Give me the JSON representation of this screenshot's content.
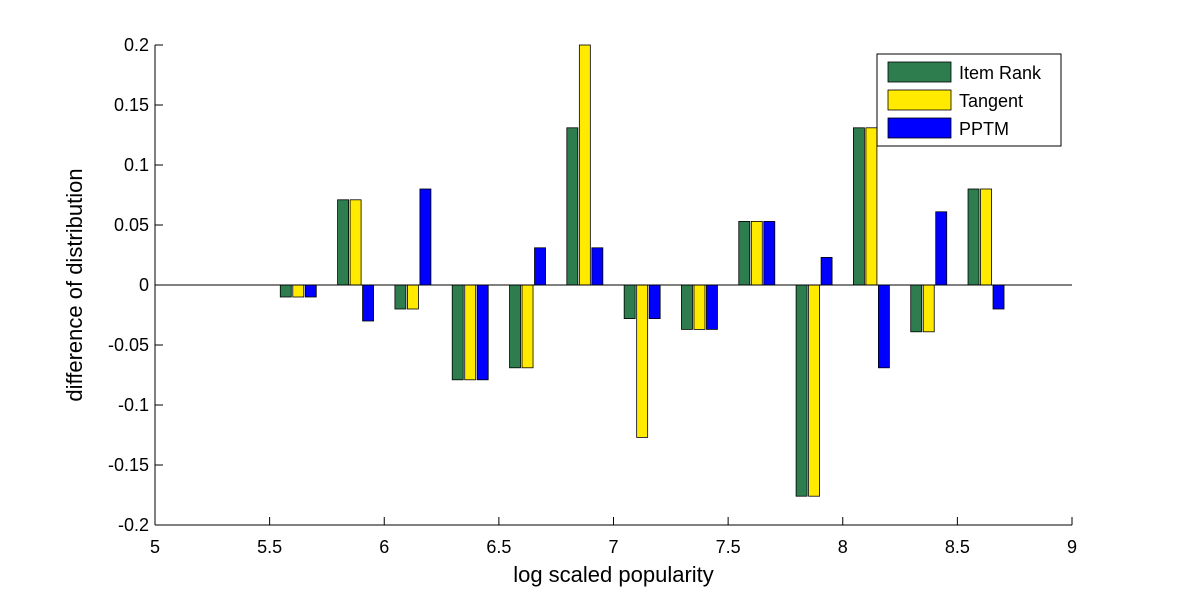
{
  "chart_data": {
    "type": "bar",
    "title": "",
    "xlabel": "log scaled popularity",
    "ylabel": "difference of distribution",
    "xlim": [
      5,
      9
    ],
    "ylim": [
      -0.2,
      0.2
    ],
    "xticks": [
      5,
      5.5,
      6,
      6.5,
      7,
      7.5,
      8,
      8.5,
      9
    ],
    "xtick_labels": [
      "5",
      "5.5",
      "6",
      "6.5",
      "7",
      "7.5",
      "8",
      "8.5",
      "9"
    ],
    "yticks": [
      -0.2,
      -0.15,
      -0.1,
      -0.05,
      0,
      0.05,
      0.1,
      0.15,
      0.2
    ],
    "ytick_labels": [
      "-0.2",
      "-0.15",
      "-0.1",
      "-0.05",
      "0",
      "0.05",
      "0.1",
      "0.15",
      "0.2"
    ],
    "grid": false,
    "legend": "top-right",
    "x": [
      5.625,
      5.875,
      6.125,
      6.375,
      6.625,
      6.875,
      7.125,
      7.375,
      7.625,
      7.875,
      8.125,
      8.375,
      8.625
    ],
    "series": [
      {
        "name": "Item Rank",
        "color": "#2E7D4F",
        "values": [
          -0.01,
          0.071,
          -0.02,
          -0.079,
          -0.069,
          0.131,
          -0.028,
          -0.037,
          0.053,
          -0.176,
          0.131,
          -0.039,
          0.08
        ]
      },
      {
        "name": "Tangent",
        "color": "#FFEA00",
        "values": [
          -0.01,
          0.071,
          -0.02,
          -0.079,
          -0.069,
          0.2,
          -0.127,
          -0.037,
          0.053,
          -0.176,
          0.131,
          -0.039,
          0.08
        ]
      },
      {
        "name": "PPTM",
        "color": "#0000FF",
        "values": [
          -0.01,
          -0.03,
          0.08,
          -0.079,
          0.031,
          0.031,
          -0.028,
          -0.037,
          0.053,
          0.023,
          -0.069,
          0.061,
          -0.02
        ]
      }
    ]
  }
}
